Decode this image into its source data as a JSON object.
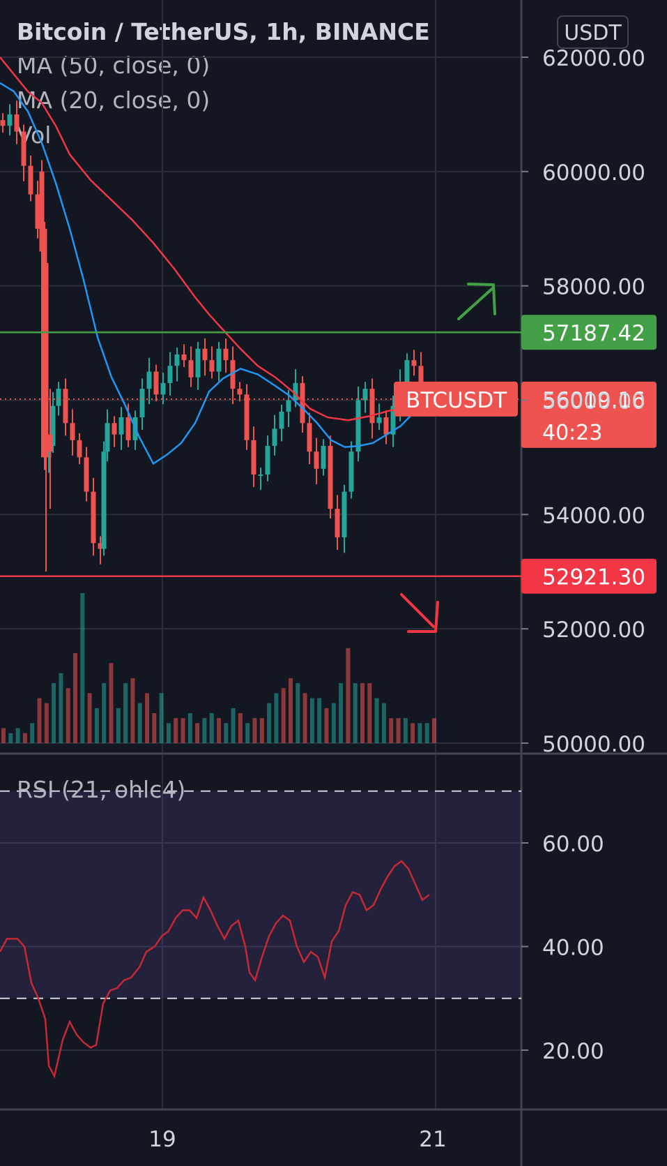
{
  "header": {
    "title": "Bitcoin / TetherUS, 1h, BINANCE",
    "currency_button": "USDT"
  },
  "indicators": {
    "ma50": "MA (50, close, 0)",
    "ma20": "MA (20, close, 0)",
    "vol": "Vol",
    "rsi": "RSI (21, ohlc4)"
  },
  "colors": {
    "background": "#131722",
    "up": "#26a69a",
    "down": "#ef5350",
    "ma50": "#f23645",
    "ma20": "#2196f3",
    "resistance": "#43a047",
    "support": "#f23645",
    "rsi_line": "#c62834",
    "rsi_band": "#7e57c2",
    "grid": "#2a2e39",
    "axis_text": "#d1d4dc"
  },
  "chart_data": [
    {
      "type": "candlestick",
      "title": "Bitcoin / TetherUS, 1h, BINANCE",
      "y_ticks": [
        50000,
        52000,
        54000,
        56000,
        58000,
        60000,
        62000
      ],
      "y_tick_labels": [
        "50000.00",
        "52000.00",
        "54000.00",
        "56000.00",
        "58000.00",
        "60000.00",
        "62000.00"
      ],
      "ylim": [
        49980,
        62850
      ],
      "x_tick_labels": [
        "19",
        "21"
      ],
      "grid": true,
      "levels": [
        {
          "name": "resistance",
          "value": 57187.42,
          "label": "57187.42",
          "color": "#43a047"
        },
        {
          "name": "support",
          "value": 52921.3,
          "label": "52921.30",
          "color": "#f23645"
        }
      ],
      "last_price": {
        "symbol": "BTCUSDT",
        "value": 56019.16,
        "label": "56019.16",
        "countdown": "40:23"
      },
      "ma50": [
        [
          0,
          62000
        ],
        [
          20,
          61700
        ],
        [
          40,
          61400
        ],
        [
          60,
          61200
        ],
        [
          80,
          60800
        ],
        [
          100,
          60300
        ],
        [
          130,
          59850
        ],
        [
          160,
          59500
        ],
        [
          190,
          59150
        ],
        [
          220,
          58750
        ],
        [
          250,
          58300
        ],
        [
          280,
          57800
        ],
        [
          300,
          57500
        ],
        [
          320,
          57230
        ],
        [
          345,
          56900
        ],
        [
          370,
          56600
        ],
        [
          395,
          56400
        ],
        [
          420,
          56150
        ],
        [
          445,
          55850
        ],
        [
          470,
          55700
        ],
        [
          500,
          55650
        ],
        [
          530,
          55720
        ],
        [
          560,
          55820
        ],
        [
          590,
          55860
        ],
        [
          610,
          55900
        ]
      ],
      "ma20": [
        [
          0,
          61550
        ],
        [
          20,
          61400
        ],
        [
          40,
          61050
        ],
        [
          60,
          60500
        ],
        [
          80,
          59800
        ],
        [
          100,
          59000
        ],
        [
          120,
          58100
        ],
        [
          140,
          57100
        ],
        [
          160,
          56400
        ],
        [
          180,
          55900
        ],
        [
          200,
          55350
        ],
        [
          220,
          54890
        ],
        [
          240,
          55050
        ],
        [
          260,
          55250
        ],
        [
          280,
          55600
        ],
        [
          300,
          56150
        ],
        [
          320,
          56380
        ],
        [
          345,
          56550
        ],
        [
          370,
          56450
        ],
        [
          395,
          56250
        ],
        [
          415,
          56080
        ],
        [
          435,
          55850
        ],
        [
          455,
          55600
        ],
        [
          475,
          55300
        ],
        [
          495,
          55180
        ],
        [
          515,
          55200
        ],
        [
          535,
          55250
        ],
        [
          555,
          55400
        ],
        [
          575,
          55550
        ],
        [
          595,
          55800
        ],
        [
          610,
          55950
        ]
      ],
      "candles_down_highlights": [
        {
          "x": 60,
          "open": 60000,
          "close": 58600,
          "high": 60200,
          "low": 55000
        },
        {
          "x": 66,
          "open": 58400,
          "close": 55000,
          "high": 58600,
          "low": 53000
        },
        {
          "x": 72,
          "open": 55100,
          "close": 55400,
          "high": 56200,
          "low": 54100
        }
      ]
    },
    {
      "type": "bar",
      "title": "Vol",
      "series": [
        {
          "values": [
            3,
            2,
            3,
            2,
            4,
            9,
            8,
            12,
            14,
            11,
            18,
            30,
            10,
            7,
            12,
            16,
            7,
            12,
            13,
            8,
            10,
            6,
            10,
            4,
            5,
            5,
            6,
            4,
            5,
            6,
            5,
            4,
            7,
            6,
            4,
            5,
            5,
            8,
            10,
            11,
            13,
            12,
            10,
            9,
            9,
            7,
            8,
            12,
            19,
            12,
            12,
            12,
            9,
            8,
            5,
            5,
            5,
            4,
            4,
            4,
            5
          ]
        }
      ]
    },
    {
      "type": "line",
      "title": "RSI (21, ohlc4)",
      "y_ticks": [
        20,
        40,
        60
      ],
      "y_tick_labels": [
        "20.00",
        "40.00",
        "60.00"
      ],
      "ylim": [
        9,
        74
      ],
      "bands": [
        30,
        70
      ],
      "series": [
        {
          "values": [
            [
              0,
              39
            ],
            [
              10,
              41.5
            ],
            [
              25,
              41.5
            ],
            [
              35,
              40
            ],
            [
              45,
              33
            ],
            [
              55,
              30
            ],
            [
              65,
              26
            ],
            [
              70,
              17
            ],
            [
              78,
              15
            ],
            [
              90,
              22
            ],
            [
              100,
              25.5
            ],
            [
              110,
              23
            ],
            [
              120,
              21.5
            ],
            [
              130,
              20.5
            ],
            [
              138,
              21
            ],
            [
              148,
              29
            ],
            [
              158,
              31.5
            ],
            [
              168,
              32
            ],
            [
              178,
              33.5
            ],
            [
              188,
              34
            ],
            [
              200,
              36
            ],
            [
              210,
              39
            ],
            [
              222,
              40
            ],
            [
              232,
              42
            ],
            [
              242,
              43
            ],
            [
              252,
              45.5
            ],
            [
              262,
              47
            ],
            [
              272,
              47
            ],
            [
              282,
              45.5
            ],
            [
              292,
              49.5
            ],
            [
              302,
              47
            ],
            [
              312,
              44
            ],
            [
              322,
              41.5
            ],
            [
              332,
              44
            ],
            [
              342,
              45
            ],
            [
              352,
              40
            ],
            [
              358,
              35
            ],
            [
              366,
              33.5
            ],
            [
              376,
              38
            ],
            [
              386,
              42
            ],
            [
              396,
              44.5
            ],
            [
              406,
              46
            ],
            [
              416,
              45
            ],
            [
              426,
              40
            ],
            [
              436,
              37
            ],
            [
              446,
              39
            ],
            [
              456,
              38
            ],
            [
              466,
              34
            ],
            [
              476,
              41
            ],
            [
              486,
              43
            ],
            [
              496,
              48
            ],
            [
              506,
              50.5
            ],
            [
              516,
              50
            ],
            [
              526,
              47
            ],
            [
              536,
              48
            ],
            [
              546,
              51
            ],
            [
              556,
              53.5
            ],
            [
              566,
              55.5
            ],
            [
              576,
              56.5
            ],
            [
              586,
              55
            ],
            [
              596,
              52
            ],
            [
              606,
              49
            ],
            [
              616,
              50
            ]
          ]
        }
      ]
    }
  ]
}
